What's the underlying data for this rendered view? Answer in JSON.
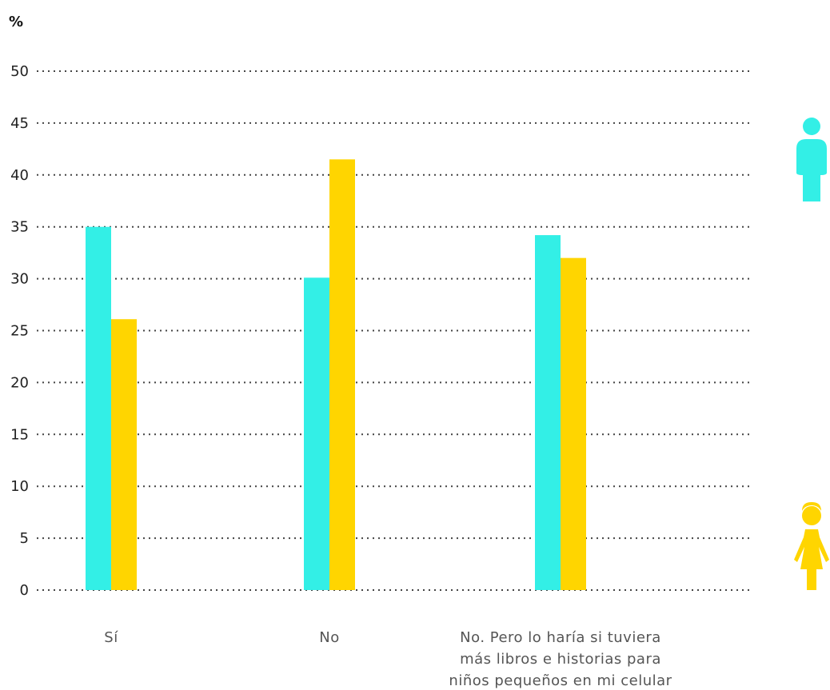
{
  "chart_data": {
    "type": "bar",
    "ylabel": "%",
    "ylim": [
      0,
      50
    ],
    "yticks": [
      "0",
      "5",
      "10",
      "15",
      "20",
      "25",
      "30",
      "35",
      "40",
      "45",
      "50"
    ],
    "grid": true,
    "categories": [
      [
        "Sí"
      ],
      [
        "No"
      ],
      [
        "No. Pero lo haría si tuviera",
        "más libros e historias para",
        "niños pequeños en mi celular"
      ]
    ],
    "series": [
      {
        "values": [
          35,
          30.1,
          34.2
        ]
      },
      {
        "values": [
          26.1,
          41.5,
          32
        ]
      }
    ],
    "legend": "right",
    "legend_icons": [
      "boy-icon",
      "girl-icon"
    ]
  },
  "colors": {
    "series": [
      "#33EFE6",
      "#FFD500"
    ],
    "grid": "#444444",
    "text": "#222222"
  }
}
